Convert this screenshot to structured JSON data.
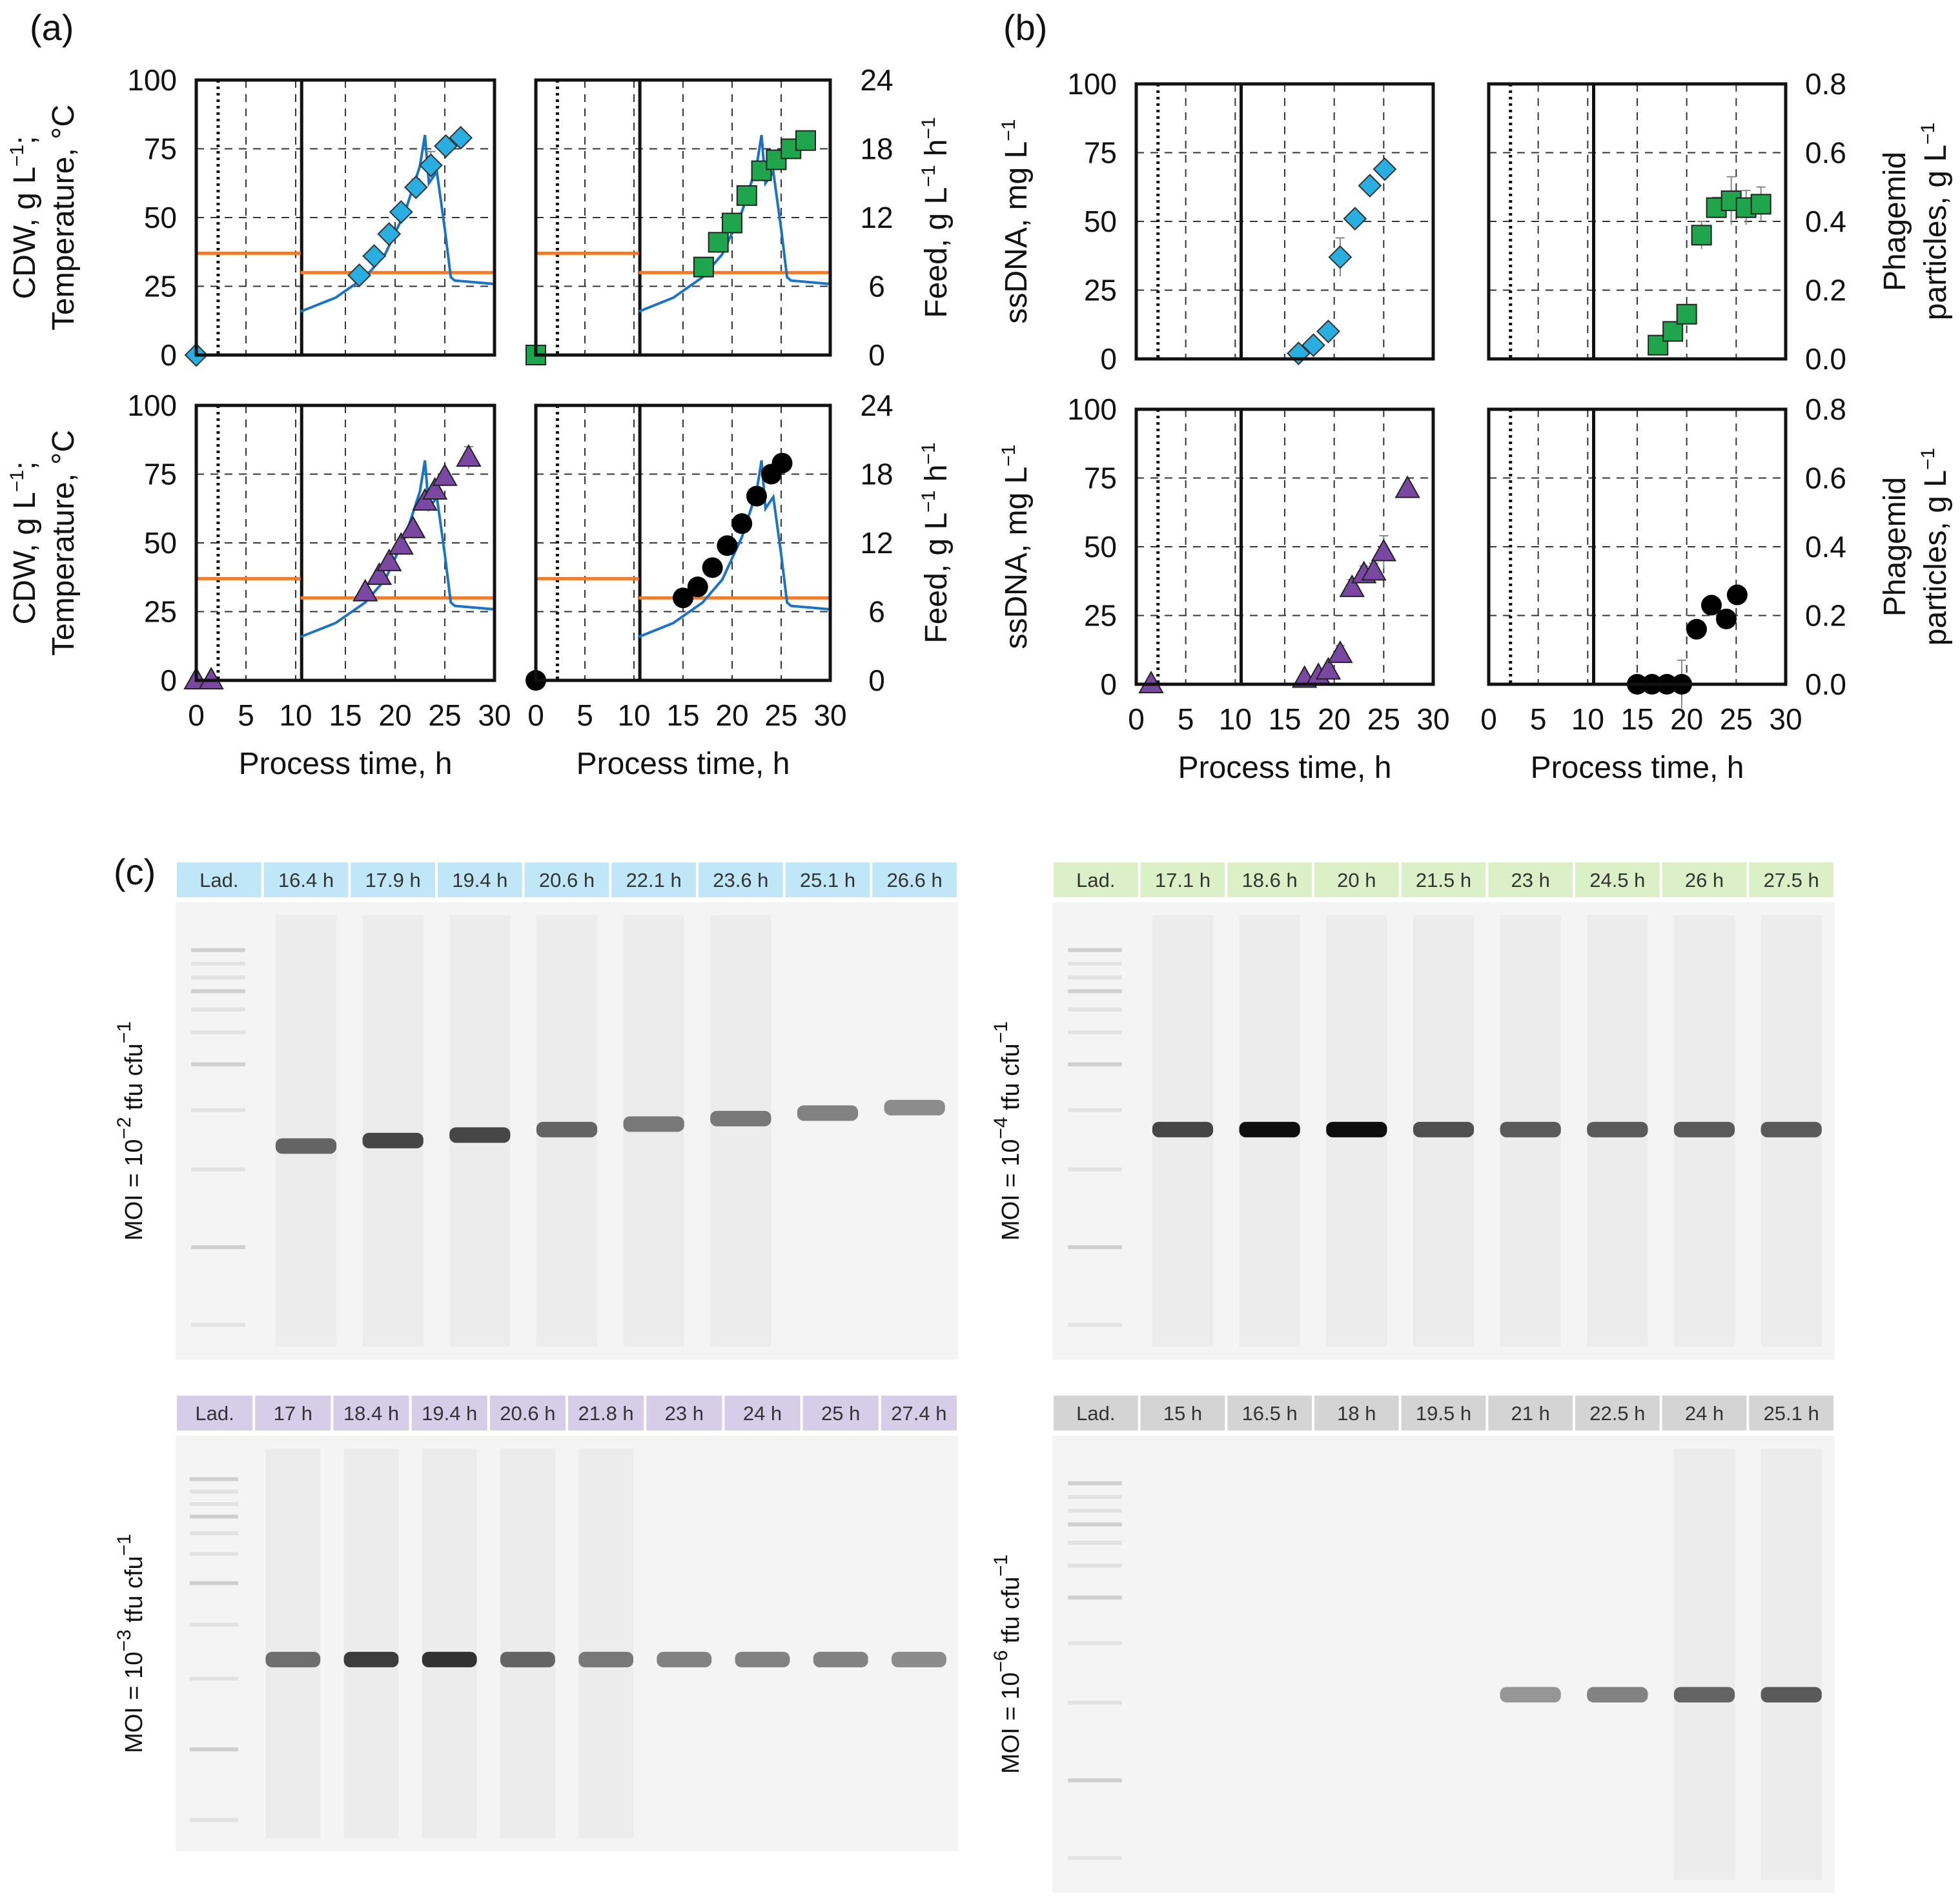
{
  "panel_labels": {
    "a": "(a)",
    "b": "(b)",
    "c": "(c)"
  },
  "colors": {
    "temperature": "#ee7c2c",
    "feed": "#1c73c4",
    "diamond": "#28aee0",
    "square": "#1fa54b",
    "triangle": "#7a47a3",
    "circle": "#000000",
    "header_blue": "#bfe7f7",
    "header_green": "#dcf0c7",
    "header_purple": "#d8cde8",
    "header_gray": "#d4d4d4"
  },
  "text": {
    "cdw_label": "CDW, g L",
    "cdw_label_sup": "−1",
    "cdw_label_end": ";",
    "temp_label": "Temperature, °C",
    "feed_label": "Feed, g L",
    "feed_sup1": "−1",
    "feed_mid": " h",
    "feed_sup2": "−1",
    "ssdna_label": "ssDNA, mg L",
    "ssdna_sup": "−1",
    "phagemid_line1": "Phagemid",
    "phagemid_line2": "particles, g L",
    "phagemid_sup": "−1",
    "xlabel": "Process time, h",
    "moi_prefix": "MOI = 10",
    "moi_suffix": " tfu cfu",
    "moi_suffix_sup": "−1"
  },
  "chart_data": [
    {
      "id": "a-top-left",
      "type": "scatter+line",
      "xlabel": "Process time, h",
      "ylabel": "CDW, g L−1; Temperature, °C",
      "xlim": [
        0,
        30
      ],
      "ylim": [
        0,
        100
      ],
      "y2lim": [
        0,
        24
      ],
      "xticks": [
        0,
        5,
        10,
        15,
        20,
        25,
        30
      ],
      "yticks": [
        0,
        25,
        50,
        75,
        100
      ],
      "y2ticks": [
        0,
        6,
        12,
        18,
        24
      ],
      "marker": "diamond",
      "points": [
        [
          0,
          0
        ],
        [
          16.4,
          29
        ],
        [
          17.9,
          36
        ],
        [
          19.4,
          44
        ],
        [
          20.6,
          52
        ],
        [
          22.1,
          61
        ],
        [
          23.6,
          69
        ],
        [
          25.1,
          76
        ],
        [
          26.6,
          79
        ]
      ],
      "errors": [
        0,
        2,
        2,
        2,
        2,
        3,
        5,
        2,
        2
      ],
      "temperature": [
        [
          0,
          37
        ],
        [
          10.5,
          37
        ],
        [
          10.5,
          30
        ],
        [
          30,
          30
        ]
      ],
      "feed": [
        [
          10.5,
          3.8
        ],
        [
          14,
          5.0
        ],
        [
          17,
          6.8
        ],
        [
          19,
          8.8
        ],
        [
          21,
          12.5
        ],
        [
          22.5,
          16.5
        ],
        [
          23,
          19.2
        ],
        [
          23.4,
          15.0
        ],
        [
          24.2,
          16.0
        ],
        [
          25,
          11.0
        ],
        [
          25.6,
          6.8
        ],
        [
          26,
          6.5
        ],
        [
          30,
          6.2
        ]
      ]
    },
    {
      "id": "a-top-right",
      "type": "scatter+line",
      "xlabel": "Process time, h",
      "ylabel": "Feed, g L−1 h−1",
      "xlim": [
        0,
        30
      ],
      "ylim": [
        0,
        100
      ],
      "y2lim": [
        0,
        24
      ],
      "xticks": [
        0,
        5,
        10,
        15,
        20,
        25,
        30
      ],
      "yticks": [
        0,
        25,
        50,
        75,
        100
      ],
      "y2ticks": [
        0,
        6,
        12,
        18,
        24
      ],
      "marker": "square",
      "points": [
        [
          0,
          0
        ],
        [
          17.1,
          32
        ],
        [
          18.6,
          41
        ],
        [
          20,
          48
        ],
        [
          21.5,
          58
        ],
        [
          23,
          67
        ],
        [
          24.5,
          71
        ],
        [
          26,
          75
        ],
        [
          27.5,
          78
        ]
      ],
      "errors": [
        0,
        2,
        2,
        2,
        2,
        3,
        2,
        2,
        2
      ],
      "temperature": [
        [
          0,
          37
        ],
        [
          10.5,
          37
        ],
        [
          10.5,
          30
        ],
        [
          30,
          30
        ]
      ],
      "feed": [
        [
          10.5,
          3.8
        ],
        [
          14,
          5.0
        ],
        [
          17,
          6.8
        ],
        [
          19,
          8.8
        ],
        [
          21,
          12.5
        ],
        [
          22.5,
          16.5
        ],
        [
          23,
          19.2
        ],
        [
          23.4,
          15.0
        ],
        [
          24.2,
          16.0
        ],
        [
          25,
          11.0
        ],
        [
          25.6,
          6.8
        ],
        [
          26,
          6.5
        ],
        [
          30,
          6.2
        ]
      ]
    },
    {
      "id": "a-bottom-left",
      "type": "scatter+line",
      "xlabel": "Process time, h",
      "ylabel": "CDW, g L−1; Temperature, °C",
      "xlim": [
        0,
        30
      ],
      "ylim": [
        0,
        100
      ],
      "y2lim": [
        0,
        24
      ],
      "xticks": [
        0,
        5,
        10,
        15,
        20,
        25,
        30
      ],
      "yticks": [
        0,
        25,
        50,
        75,
        100
      ],
      "y2ticks": [
        0,
        6,
        12,
        18,
        24
      ],
      "marker": "triangle",
      "points": [
        [
          0,
          0
        ],
        [
          1.5,
          0
        ],
        [
          17,
          32
        ],
        [
          18.4,
          38
        ],
        [
          19.4,
          43
        ],
        [
          20.6,
          49
        ],
        [
          21.8,
          55
        ],
        [
          23,
          65
        ],
        [
          24,
          69
        ],
        [
          25,
          74
        ],
        [
          27.4,
          81
        ]
      ],
      "errors": [
        0,
        0,
        2,
        2,
        2,
        2,
        2,
        2,
        2,
        2,
        4
      ],
      "temperature": [
        [
          0,
          37
        ],
        [
          10.5,
          37
        ],
        [
          10.5,
          30
        ],
        [
          30,
          30
        ]
      ],
      "feed": [
        [
          10.5,
          3.8
        ],
        [
          14,
          5.0
        ],
        [
          17,
          6.8
        ],
        [
          19,
          8.8
        ],
        [
          21,
          12.5
        ],
        [
          22.5,
          16.5
        ],
        [
          23,
          19.2
        ],
        [
          23.4,
          15.0
        ],
        [
          24.2,
          16.0
        ],
        [
          25,
          11.0
        ],
        [
          25.6,
          6.8
        ],
        [
          26,
          6.5
        ],
        [
          30,
          6.2
        ]
      ]
    },
    {
      "id": "a-bottom-right",
      "type": "scatter+line",
      "xlabel": "Process time, h",
      "ylabel": "Feed, g L−1 h−1",
      "xlim": [
        0,
        30
      ],
      "ylim": [
        0,
        100
      ],
      "y2lim": [
        0,
        24
      ],
      "xticks": [
        0,
        5,
        10,
        15,
        20,
        25,
        30
      ],
      "yticks": [
        0,
        25,
        50,
        75,
        100
      ],
      "y2ticks": [
        0,
        6,
        12,
        18,
        24
      ],
      "marker": "circle",
      "points": [
        [
          0,
          0
        ],
        [
          15,
          30
        ],
        [
          16.5,
          34
        ],
        [
          18,
          41
        ],
        [
          19.5,
          49
        ],
        [
          21,
          57
        ],
        [
          22.5,
          67
        ],
        [
          24,
          75
        ],
        [
          25.1,
          79
        ]
      ],
      "errors": [
        0,
        1,
        1,
        1,
        1,
        1,
        1,
        1,
        1
      ],
      "temperature": [
        [
          0,
          37
        ],
        [
          10.5,
          37
        ],
        [
          10.5,
          30
        ],
        [
          30,
          30
        ]
      ],
      "feed": [
        [
          10.5,
          3.8
        ],
        [
          14,
          5.0
        ],
        [
          17,
          6.8
        ],
        [
          19,
          8.8
        ],
        [
          21,
          12.5
        ],
        [
          22.5,
          16.5
        ],
        [
          23,
          19.2
        ],
        [
          23.4,
          15.0
        ],
        [
          24.2,
          16.0
        ],
        [
          25,
          11.0
        ],
        [
          25.6,
          6.8
        ],
        [
          26,
          6.5
        ],
        [
          30,
          6.2
        ]
      ]
    },
    {
      "id": "b-top-left",
      "type": "scatter",
      "xlabel": "Process time, h",
      "ylabel": "ssDNA, mg L−1",
      "xlim": [
        0,
        30
      ],
      "ylim": [
        0,
        100
      ],
      "xticks": [
        0,
        5,
        10,
        15,
        20,
        25,
        30
      ],
      "yticks": [
        0,
        25,
        50,
        75,
        100
      ],
      "marker": "diamond",
      "points": [
        [
          16.4,
          2
        ],
        [
          17.9,
          5
        ],
        [
          19.4,
          10
        ],
        [
          20.6,
          37
        ],
        [
          22.1,
          51
        ],
        [
          23.6,
          63
        ],
        [
          25.1,
          69
        ]
      ],
      "errors": [
        1,
        2,
        2,
        7,
        2,
        2,
        2
      ]
    },
    {
      "id": "b-top-right",
      "type": "scatter",
      "xlabel": "Process time, h",
      "ylabel": "Phagemid particles, g L−1",
      "xlim": [
        0,
        30
      ],
      "ylim": [
        0,
        0.8
      ],
      "xticks": [
        0,
        5,
        10,
        15,
        20,
        25,
        30
      ],
      "yticks": [
        0.0,
        0.2,
        0.4,
        0.6,
        0.8
      ],
      "marker": "square",
      "points": [
        [
          17.1,
          0.04
        ],
        [
          18.6,
          0.08
        ],
        [
          20,
          0.13
        ],
        [
          21.5,
          0.36
        ],
        [
          23,
          0.44
        ],
        [
          24.5,
          0.46
        ],
        [
          26,
          0.44
        ],
        [
          27.5,
          0.45
        ]
      ],
      "errors": [
        0.01,
        0.01,
        0.01,
        0.04,
        0.03,
        0.07,
        0.05,
        0.05
      ]
    },
    {
      "id": "b-bottom-left",
      "type": "scatter",
      "xlabel": "Process time, h",
      "ylabel": "ssDNA, mg L−1",
      "xlim": [
        0,
        30
      ],
      "ylim": [
        0,
        100
      ],
      "xticks": [
        0,
        5,
        10,
        15,
        20,
        25,
        30
      ],
      "yticks": [
        0,
        25,
        50,
        75,
        100
      ],
      "marker": "triangle",
      "points": [
        [
          1.5,
          0
        ],
        [
          17,
          2
        ],
        [
          18.4,
          3
        ],
        [
          19.4,
          5
        ],
        [
          20.6,
          11
        ],
        [
          21.8,
          35
        ],
        [
          23,
          40
        ],
        [
          24,
          41
        ],
        [
          25,
          48
        ],
        [
          27.4,
          71
        ]
      ],
      "errors": [
        0,
        1,
        1,
        2,
        3,
        3,
        3,
        3,
        6,
        2
      ]
    },
    {
      "id": "b-bottom-right",
      "type": "scatter",
      "xlabel": "Process time, h",
      "ylabel": "Phagemid particles, g L−1",
      "xlim": [
        0,
        30
      ],
      "ylim": [
        0,
        0.8
      ],
      "xticks": [
        0,
        5,
        10,
        15,
        20,
        25,
        30
      ],
      "yticks": [
        0.0,
        0.2,
        0.4,
        0.6,
        0.8
      ],
      "marker": "circle",
      "points": [
        [
          15,
          0
        ],
        [
          16.5,
          0
        ],
        [
          18,
          0
        ],
        [
          19.5,
          0
        ],
        [
          21,
          0.16
        ],
        [
          22.5,
          0.23
        ],
        [
          24,
          0.19
        ],
        [
          25.1,
          0.26
        ]
      ],
      "errors": [
        0,
        0,
        0,
        0.07,
        0.01,
        0.01,
        0.01,
        0.01
      ]
    }
  ],
  "gels": [
    {
      "id": "gel-moi-2",
      "exponent": "−2",
      "header_color": "#bfe7f7",
      "labels": [
        "Lad.",
        "16.4 h",
        "17.9 h",
        "19.4 h",
        "20.6 h",
        "22.1 h",
        "23.6 h",
        "25.1 h",
        "26.6 h"
      ],
      "band_intensity": [
        0,
        0.55,
        0.7,
        0.7,
        0.55,
        0.45,
        0.45,
        0.4,
        0.35
      ]
    },
    {
      "id": "gel-moi-4",
      "exponent": "−4",
      "header_color": "#dcf0c7",
      "labels": [
        "Lad.",
        "17.1 h",
        "18.6 h",
        "20 h",
        "21.5 h",
        "23 h",
        "24.5 h",
        "26 h",
        "27.5 h"
      ],
      "band_intensity": [
        0,
        0.7,
        0.98,
        0.98,
        0.65,
        0.6,
        0.6,
        0.6,
        0.6
      ]
    },
    {
      "id": "gel-moi-3",
      "exponent": "−3",
      "header_color": "#d8cde8",
      "labels": [
        "Lad.",
        "17 h",
        "18.4 h",
        "19.4 h",
        "20.6 h",
        "21.8 h",
        "23 h",
        "24 h",
        "25 h",
        "27.4 h"
      ],
      "band_intensity": [
        0,
        0.5,
        0.75,
        0.8,
        0.55,
        0.45,
        0.4,
        0.4,
        0.4,
        0.35
      ]
    },
    {
      "id": "gel-moi-6",
      "exponent": "−6",
      "header_color": "#d4d4d4",
      "labels": [
        "Lad.",
        "15 h",
        "16.5 h",
        "18 h",
        "19.5 h",
        "21 h",
        "22.5 h",
        "24 h",
        "25.1 h"
      ],
      "band_intensity": [
        0,
        0,
        0,
        0,
        0,
        0.3,
        0.4,
        0.55,
        0.6
      ]
    }
  ]
}
